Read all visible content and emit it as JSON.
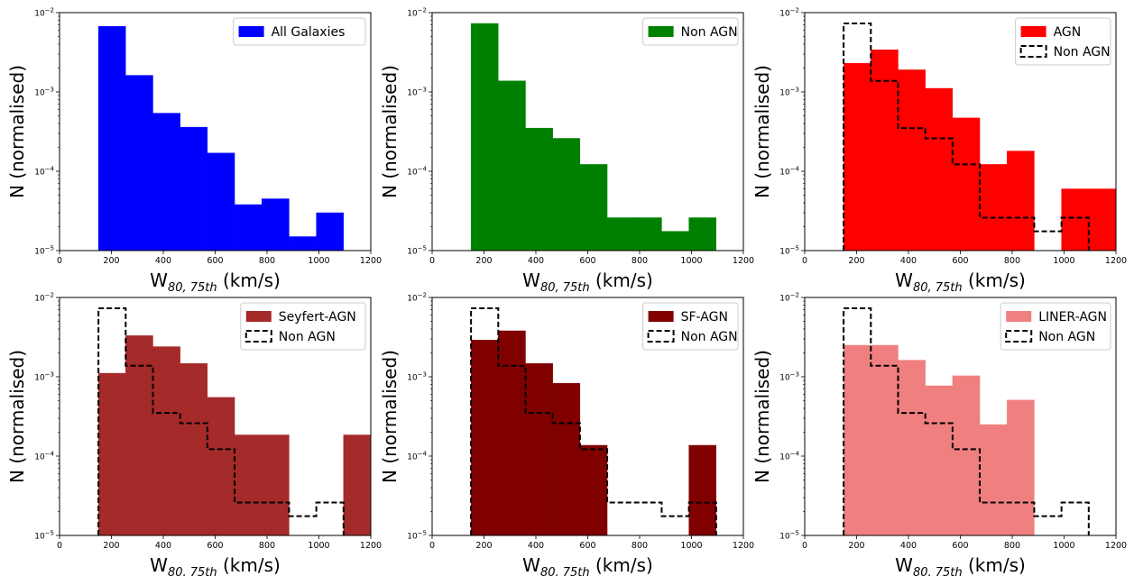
{
  "figure": {
    "shared_x_ticks": [
      "0",
      "200",
      "400",
      "600",
      "800",
      "1000",
      "1200"
    ],
    "y_tick_mantissa": "10",
    "y_tick_exponents": [
      "−5",
      "−4",
      "−3",
      "−2"
    ]
  },
  "colors": {
    "all_galaxies": "#0000ff",
    "non_agn_fill": "#008000",
    "agn": "#ff0000",
    "seyfert": "#a52a2a",
    "sf_agn": "#800000",
    "liner": "#f08080",
    "non_agn_step": "#000000"
  },
  "chart_data": [
    {
      "type": "bar",
      "scale_y": "log",
      "xlabel": "W",
      "xlabel_sub": "80, 75th",
      "xlabel_unit": "(km/s)",
      "ylabel": "N (normalised)",
      "xlim": [
        0,
        1200
      ],
      "ylim": [
        1e-05,
        0.01
      ],
      "x_ticks": [
        "0",
        "200",
        "400",
        "600",
        "800",
        "1000",
        "1200"
      ],
      "legend_position": "top-right",
      "bin_edges": [
        150,
        255,
        360,
        465,
        570,
        675,
        780,
        885,
        990,
        1095
      ],
      "series": [
        {
          "name": "All Galaxies",
          "style": "filled",
          "color": "#0000ff",
          "values": [
            0.0067,
            0.00162,
            0.00054,
            0.00036,
            0.00017,
            3.8e-05,
            4.5e-05,
            1.5e-05,
            3e-05
          ]
        }
      ]
    },
    {
      "type": "bar",
      "scale_y": "log",
      "xlabel": "W",
      "xlabel_sub": "80, 75th",
      "xlabel_unit": "(km/s)",
      "ylabel": "N (normalised)",
      "xlim": [
        0,
        1200
      ],
      "ylim": [
        1e-05,
        0.01
      ],
      "x_ticks": [
        "0",
        "200",
        "400",
        "600",
        "800",
        "1000",
        "1200"
      ],
      "legend_position": "top-right",
      "bin_edges": [
        150,
        255,
        360,
        465,
        570,
        675,
        780,
        885,
        990,
        1095
      ],
      "series": [
        {
          "name": "Non AGN",
          "style": "filled",
          "color": "#008000",
          "values": [
            0.0073,
            0.00138,
            0.00035,
            0.00026,
            0.000122,
            2.6e-05,
            2.6e-05,
            1.75e-05,
            2.6e-05
          ]
        }
      ]
    },
    {
      "type": "bar",
      "scale_y": "log",
      "xlabel": "W",
      "xlabel_sub": "80, 75th",
      "xlabel_unit": "(km/s)",
      "ylabel": "N (normalised)",
      "xlim": [
        0,
        1200
      ],
      "ylim": [
        1e-05,
        0.01
      ],
      "x_ticks": [
        "0",
        "200",
        "400",
        "600",
        "800",
        "1000",
        "1200"
      ],
      "legend_position": "top-right",
      "bin_edges": [
        150,
        255,
        360,
        465,
        570,
        675,
        780,
        885,
        990,
        1095,
        1200
      ],
      "series": [
        {
          "name": "AGN",
          "style": "filled",
          "color": "#ff0000",
          "values": [
            0.0023,
            0.0034,
            0.0019,
            0.00111,
            0.00047,
            0.000122,
            0.00018,
            0,
            6e-05,
            6e-05
          ]
        },
        {
          "name": "Non AGN",
          "style": "step-dashed",
          "color": "#000000",
          "values": [
            0.0073,
            0.00138,
            0.00035,
            0.00026,
            0.000122,
            2.6e-05,
            2.6e-05,
            1.75e-05,
            2.6e-05
          ]
        }
      ]
    },
    {
      "type": "bar",
      "scale_y": "log",
      "xlabel": "W",
      "xlabel_sub": "80, 75th",
      "xlabel_unit": "(km/s)",
      "ylabel": "N (normalised)",
      "xlim": [
        0,
        1200
      ],
      "ylim": [
        1e-05,
        0.01
      ],
      "x_ticks": [
        "0",
        "200",
        "400",
        "600",
        "800",
        "1000",
        "1200"
      ],
      "legend_position": "top-right",
      "bin_edges": [
        150,
        255,
        360,
        465,
        570,
        675,
        780,
        885,
        990,
        1095,
        1200
      ],
      "series": [
        {
          "name": "Seyfert-AGN",
          "style": "filled",
          "color": "#a52a2a",
          "values": [
            0.00111,
            0.0033,
            0.0024,
            0.00147,
            0.00055,
            0.000185,
            0.000185,
            0,
            0,
            0.000185
          ]
        },
        {
          "name": "Non AGN",
          "style": "step-dashed",
          "color": "#000000",
          "values": [
            0.0073,
            0.00138,
            0.00035,
            0.00026,
            0.000122,
            2.6e-05,
            2.6e-05,
            1.75e-05,
            2.6e-05
          ]
        }
      ]
    },
    {
      "type": "bar",
      "scale_y": "log",
      "xlabel": "W",
      "xlabel_sub": "80, 75th",
      "xlabel_unit": "(km/s)",
      "ylabel": "N (normalised)",
      "xlim": [
        0,
        1200
      ],
      "ylim": [
        1e-05,
        0.01
      ],
      "x_ticks": [
        "0",
        "200",
        "400",
        "600",
        "800",
        "1000",
        "1200"
      ],
      "legend_position": "top-right",
      "bin_edges": [
        150,
        255,
        360,
        465,
        570,
        675,
        780,
        885,
        990,
        1095
      ],
      "series": [
        {
          "name": "SF-AGN",
          "style": "filled",
          "color": "#800000",
          "values": [
            0.0029,
            0.0038,
            0.00147,
            0.00083,
            0.000137,
            0,
            0,
            0,
            0.000137
          ]
        },
        {
          "name": "Non AGN",
          "style": "step-dashed",
          "color": "#000000",
          "values": [
            0.0073,
            0.00138,
            0.00035,
            0.00026,
            0.000122,
            2.6e-05,
            2.6e-05,
            1.75e-05,
            2.6e-05
          ]
        }
      ]
    },
    {
      "type": "bar",
      "scale_y": "log",
      "xlabel": "W",
      "xlabel_sub": "80, 75th",
      "xlabel_unit": "(km/s)",
      "ylabel": "N (normalised)",
      "xlim": [
        0,
        1200
      ],
      "ylim": [
        1e-05,
        0.01
      ],
      "x_ticks": [
        "0",
        "200",
        "400",
        "600",
        "800",
        "1000",
        "1200"
      ],
      "legend_position": "top-right",
      "bin_edges": [
        150,
        255,
        360,
        465,
        570,
        675,
        780,
        885,
        990,
        1095
      ],
      "series": [
        {
          "name": "LINER-AGN",
          "style": "filled",
          "color": "#f08080",
          "values": [
            0.0025,
            0.0025,
            0.00162,
            0.00077,
            0.00103,
            0.00025,
            0.00051,
            0,
            0
          ]
        },
        {
          "name": "Non AGN",
          "style": "step-dashed",
          "color": "#000000",
          "values": [
            0.0073,
            0.00138,
            0.00035,
            0.00026,
            0.000122,
            2.6e-05,
            2.6e-05,
            1.75e-05,
            2.6e-05
          ]
        }
      ]
    }
  ]
}
